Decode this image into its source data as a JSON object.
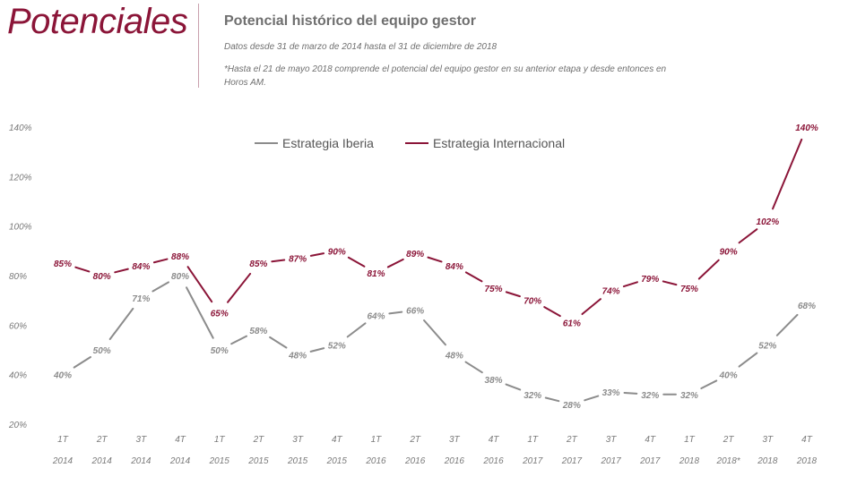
{
  "header": {
    "brand": "Potenciales",
    "title": "Potencial histórico del equipo gestor",
    "subtitle": "Datos desde 31 de marzo de 2014 hasta el 31 de diciembre de 2018",
    "note": "*Hasta el 21 de mayo 2018 comprende el potencial del equipo gestor en su anterior etapa y desde entonces en Horos AM."
  },
  "colors": {
    "iberia": "#8c8c8c",
    "internacional": "#8b1538"
  },
  "chart_data": {
    "type": "line",
    "title": "Potencial histórico del equipo gestor",
    "xlabel": "",
    "ylabel": "",
    "ylim": [
      20,
      140
    ],
    "yticks": [
      20,
      40,
      60,
      80,
      100,
      120,
      140
    ],
    "ytick_labels": [
      "20%",
      "40%",
      "60%",
      "80%",
      "100%",
      "120%",
      "140%"
    ],
    "grid": false,
    "legend_position": "top",
    "categories_quarter": [
      "1T",
      "2T",
      "3T",
      "4T",
      "1T",
      "2T",
      "3T",
      "4T",
      "1T",
      "2T",
      "3T",
      "4T",
      "1T",
      "2T",
      "3T",
      "4T",
      "1T",
      "2T",
      "3T",
      "4T"
    ],
    "categories_year": [
      "2014",
      "2014",
      "2014",
      "2014",
      "2015",
      "2015",
      "2015",
      "2015",
      "2016",
      "2016",
      "2016",
      "2016",
      "2017",
      "2017",
      "2017",
      "2017",
      "2018",
      "2018*",
      "2018",
      "2018"
    ],
    "series": [
      {
        "name": "Estrategia Iberia",
        "color": "#8c8c8c",
        "values": [
          40,
          50,
          71,
          80,
          50,
          58,
          48,
          52,
          64,
          66,
          48,
          38,
          32,
          28,
          33,
          32,
          32,
          40,
          52,
          68
        ],
        "labels": [
          "40%",
          "50%",
          "71%",
          "80%",
          "50%",
          "58%",
          "48%",
          "52%",
          "64%",
          "66%",
          "48%",
          "38%",
          "32%",
          "28%",
          "33%",
          "32%",
          "32%",
          "40%",
          "52%",
          "68%"
        ]
      },
      {
        "name": "Estrategia Internacional",
        "color": "#8b1538",
        "values": [
          85,
          80,
          84,
          88,
          65,
          85,
          87,
          90,
          81,
          89,
          84,
          75,
          70,
          61,
          74,
          79,
          75,
          90,
          102,
          140
        ],
        "labels": [
          "85%",
          "80%",
          "84%",
          "88%",
          "65%",
          "85%",
          "87%",
          "90%",
          "81%",
          "89%",
          "84%",
          "75%",
          "70%",
          "61%",
          "74%",
          "79%",
          "75%",
          "90%",
          "102%",
          "140%"
        ]
      }
    ]
  }
}
